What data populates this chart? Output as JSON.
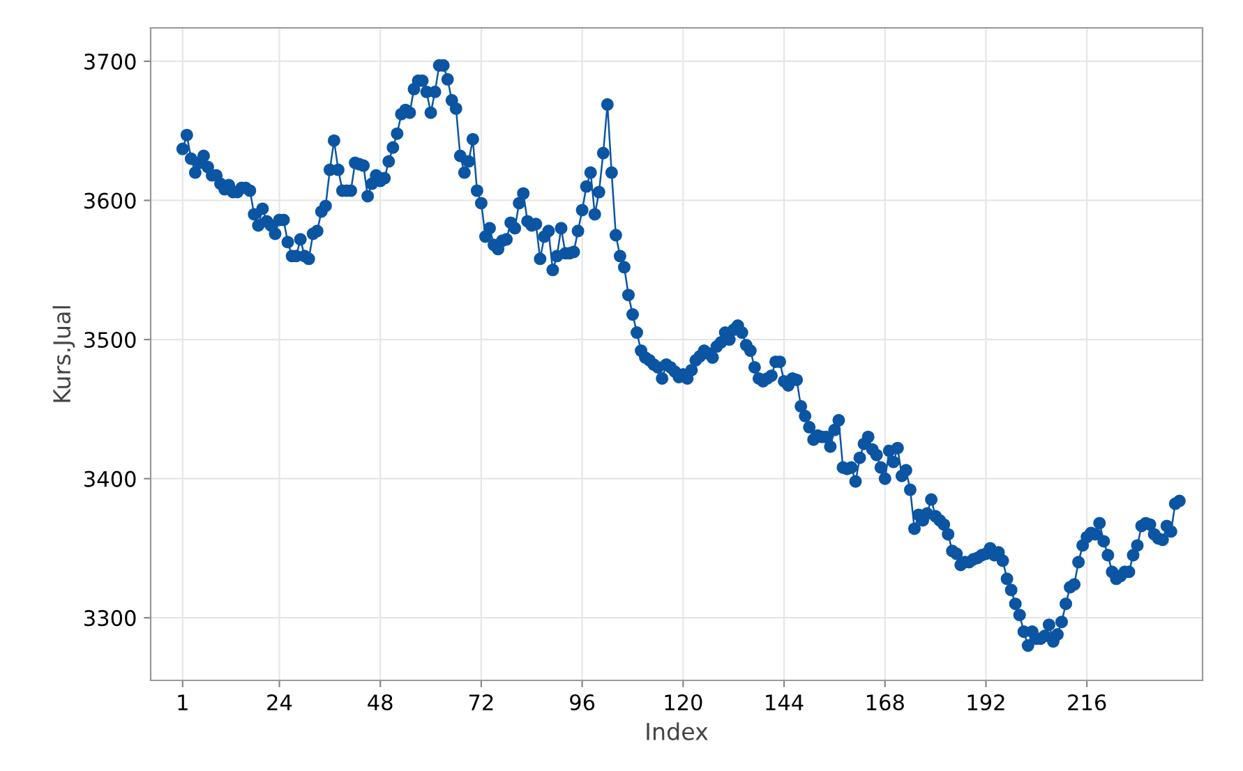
{
  "chart_data": {
    "type": "line",
    "xlabel": "Index",
    "ylabel": "Kurs.Jual",
    "x": [
      1,
      2,
      3,
      4,
      5,
      6,
      7,
      8,
      9,
      10,
      11,
      12,
      13,
      14,
      15,
      16,
      17,
      18,
      19,
      20,
      21,
      22,
      23,
      24,
      25,
      26,
      27,
      28,
      29,
      30,
      31,
      32,
      33,
      34,
      35,
      36,
      37,
      38,
      39,
      40,
      41,
      42,
      43,
      44,
      45,
      46,
      47,
      48,
      49,
      50,
      51,
      52,
      53,
      54,
      55,
      56,
      57,
      58,
      59,
      60,
      61,
      62,
      63,
      64,
      65,
      66,
      67,
      68,
      69,
      70,
      71,
      72,
      73,
      74,
      75,
      76,
      77,
      78,
      79,
      80,
      81,
      82,
      83,
      84,
      85,
      86,
      87,
      88,
      89,
      90,
      91,
      92,
      93,
      94,
      95,
      96,
      97,
      98,
      99,
      100,
      101,
      102,
      103,
      104,
      105,
      106,
      107,
      108,
      109,
      110,
      111,
      112,
      113,
      114,
      115,
      116,
      117,
      118,
      119,
      120,
      121,
      122,
      123,
      124,
      125,
      126,
      127,
      128,
      129,
      130,
      131,
      132,
      133,
      134,
      135,
      136,
      137,
      138,
      139,
      140,
      141,
      142,
      143,
      144,
      145,
      146,
      147,
      148,
      149,
      150,
      151,
      152,
      153,
      154,
      155,
      156,
      157,
      158,
      159,
      160,
      161,
      162,
      163,
      164,
      165,
      166,
      167,
      168,
      169,
      170,
      171,
      172,
      173,
      174,
      175,
      176,
      177,
      178,
      179,
      180,
      181,
      182,
      183,
      184,
      185,
      186,
      187,
      188,
      189,
      190,
      191,
      192,
      193,
      194,
      195,
      196,
      197,
      198,
      199,
      200,
      201,
      202,
      203,
      204,
      205,
      206,
      207,
      208,
      209,
      210,
      211,
      212,
      213,
      214,
      215,
      216,
      217,
      218,
      219,
      220,
      221,
      222,
      223,
      224,
      225,
      226,
      227,
      228,
      229,
      230,
      231,
      232,
      233,
      234,
      235,
      236,
      237,
      238
    ],
    "series": [
      {
        "color": "#0b55a3",
        "values": [
          3637,
          3647,
          3630,
          3620,
          3627,
          3632,
          3624,
          3618,
          3618,
          3612,
          3608,
          3611,
          3606,
          3606,
          3609,
          3609,
          3607,
          3590,
          3582,
          3594,
          3585,
          3582,
          3576,
          3586,
          3586,
          3570,
          3560,
          3560,
          3572,
          3560,
          3558,
          3576,
          3578,
          3592,
          3596,
          3622,
          3643,
          3622,
          3607,
          3607,
          3607,
          3627,
          3626,
          3625,
          3603,
          3612,
          3618,
          3614,
          3616,
          3628,
          3638,
          3648,
          3662,
          3665,
          3663,
          3680,
          3686,
          3686,
          3678,
          3663,
          3678,
          3697,
          3697,
          3687,
          3672,
          3666,
          3632,
          3620,
          3628,
          3644,
          3607,
          3598,
          3574,
          3580,
          3568,
          3565,
          3571,
          3572,
          3584,
          3580,
          3598,
          3605,
          3585,
          3582,
          3583,
          3558,
          3574,
          3578,
          3550,
          3560,
          3580,
          3562,
          3562,
          3563,
          3578,
          3593,
          3610,
          3620,
          3590,
          3606,
          3634,
          3669,
          3620,
          3575,
          3560,
          3552,
          3532,
          3518,
          3505,
          3492,
          3487,
          3485,
          3482,
          3480,
          3472,
          3482,
          3480,
          3477,
          3473,
          3475,
          3472,
          3478,
          3485,
          3488,
          3492,
          3490,
          3487,
          3495,
          3498,
          3505,
          3500,
          3507,
          3510,
          3505,
          3496,
          3492,
          3480,
          3472,
          3470,
          3472,
          3474,
          3484,
          3484,
          3470,
          3467,
          3472,
          3471,
          3452,
          3445,
          3437,
          3428,
          3431,
          3430,
          3430,
          3423,
          3435,
          3442,
          3408,
          3407,
          3408,
          3398,
          3415,
          3425,
          3430,
          3421,
          3417,
          3408,
          3400,
          3420,
          3412,
          3422,
          3402,
          3406,
          3392,
          3364,
          3374,
          3370,
          3375,
          3385,
          3373,
          3370,
          3367,
          3360,
          3348,
          3346,
          3338,
          3340,
          3340,
          3342,
          3343,
          3345,
          3346,
          3350,
          3345,
          3347,
          3341,
          3328,
          3320,
          3310,
          3302,
          3290,
          3280,
          3290,
          3285,
          3285,
          3287,
          3295,
          3283,
          3288,
          3297,
          3310,
          3322,
          3324,
          3340,
          3352,
          3358,
          3361,
          3360,
          3368,
          3355,
          3345,
          3333,
          3328,
          3330,
          3333,
          3333,
          3345,
          3352,
          3366,
          3368,
          3367,
          3360,
          3357,
          3356,
          3366,
          3362,
          3382,
          3384
        ]
      }
    ],
    "xlim": [
      -6.6,
      243.5
    ],
    "ylim": [
      3255,
      3724
    ],
    "xticks": [
      1,
      24,
      48,
      72,
      96,
      120,
      144,
      168,
      192,
      216
    ],
    "yticks": [
      3300,
      3400,
      3500,
      3600,
      3700
    ],
    "grid": true,
    "marker": "circle",
    "line_style": "solid"
  }
}
